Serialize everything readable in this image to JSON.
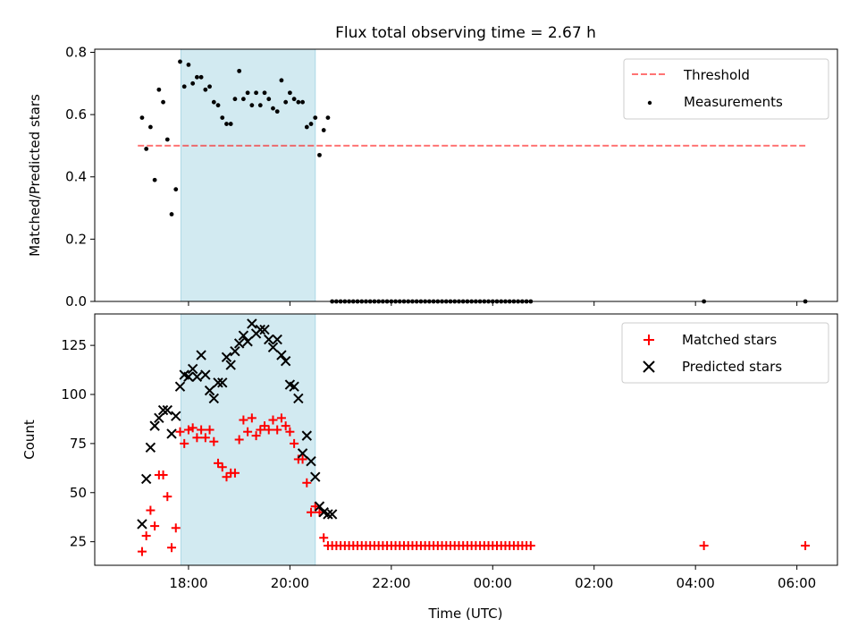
{
  "title": "Flux total observing time = 2.67 h",
  "x_axis_label": "Time (UTC)",
  "x_ticks": [
    "18:00",
    "20:00",
    "22:00",
    "00:00",
    "02:00",
    "04:00",
    "06:00"
  ],
  "x_tick_hours": [
    18,
    20,
    22,
    24,
    26,
    28,
    30
  ],
  "x_range_hours": [
    16.15,
    30.8
  ],
  "highlight_span_hours": [
    17.85,
    20.5
  ],
  "colors": {
    "highlight": "#add8e6",
    "threshold": "#ff0000",
    "measurements": "#000000",
    "matched": "#ff0000",
    "predicted": "#000000"
  },
  "chart_data": [
    {
      "type": "scatter",
      "ylabel": "Matched/Predicted stars",
      "ylim": [
        0,
        0.81
      ],
      "yticks": [
        "0.0",
        "0.2",
        "0.4",
        "0.6",
        "0.8"
      ],
      "ytick_values": [
        0,
        0.2,
        0.4,
        0.6,
        0.8
      ],
      "legend_position": "top-right",
      "threshold": {
        "name": "Threshold",
        "y": 0.5,
        "x_start": "17:00",
        "x_end": "06:10"
      },
      "series": [
        {
          "name": "Measurements",
          "x": [
            "17:05",
            "17:10",
            "17:15",
            "17:20",
            "17:25",
            "17:30",
            "17:35",
            "17:40",
            "17:45",
            "17:50",
            "17:55",
            "18:00",
            "18:05",
            "18:10",
            "18:15",
            "18:20",
            "18:25",
            "18:30",
            "18:35",
            "18:40",
            "18:45",
            "18:50",
            "18:55",
            "19:00",
            "19:05",
            "19:10",
            "19:15",
            "19:20",
            "19:25",
            "19:30",
            "19:35",
            "19:40",
            "19:45",
            "19:50",
            "19:55",
            "20:00",
            "20:05",
            "20:10",
            "20:15",
            "20:20",
            "20:25",
            "20:30",
            "20:35",
            "20:40",
            "20:45",
            "20:50",
            "20:55",
            "21:00",
            "21:05",
            "21:10",
            "21:15",
            "21:20",
            "21:25",
            "21:30",
            "21:35",
            "21:40",
            "21:45",
            "21:50",
            "21:55",
            "22:00",
            "22:05",
            "22:10",
            "22:15",
            "22:20",
            "22:25",
            "22:30",
            "22:35",
            "22:40",
            "22:45",
            "22:50",
            "22:55",
            "23:00",
            "23:05",
            "23:10",
            "23:15",
            "23:20",
            "23:25",
            "23:30",
            "23:35",
            "23:40",
            "23:45",
            "23:50",
            "23:55",
            "00:00",
            "00:05",
            "00:10",
            "00:15",
            "00:20",
            "00:25",
            "00:30",
            "00:35",
            "00:40",
            "00:45",
            "04:10",
            "06:10"
          ],
          "y": [
            0.59,
            0.49,
            0.56,
            0.39,
            0.68,
            0.64,
            0.52,
            0.28,
            0.36,
            0.77,
            0.69,
            0.76,
            0.7,
            0.72,
            0.72,
            0.68,
            0.69,
            0.64,
            0.63,
            0.59,
            0.57,
            0.57,
            0.65,
            0.74,
            0.65,
            0.67,
            0.63,
            0.67,
            0.63,
            0.67,
            0.65,
            0.62,
            0.61,
            0.71,
            0.64,
            0.67,
            0.65,
            0.64,
            0.64,
            0.56,
            0.57,
            0.59,
            0.47,
            0.55,
            0.59,
            0.0,
            0.0,
            0.0,
            0.0,
            0.0,
            0.0,
            0.0,
            0.0,
            0.0,
            0.0,
            0.0,
            0.0,
            0.0,
            0.0,
            0.0,
            0.0,
            0.0,
            0.0,
            0.0,
            0.0,
            0.0,
            0.0,
            0.0,
            0.0,
            0.0,
            0.0,
            0.0,
            0.0,
            0.0,
            0.0,
            0.0,
            0.0,
            0.0,
            0.0,
            0.0,
            0.0,
            0.0,
            0.0,
            0.0,
            0.0,
            0.0,
            0.0,
            0.0,
            0.0,
            0.0,
            0.0,
            0.0,
            0.0,
            0.0,
            0.0
          ]
        }
      ]
    },
    {
      "type": "scatter",
      "ylabel": "Count",
      "ylim": [
        13,
        141
      ],
      "yticks": [
        "25",
        "50",
        "75",
        "100",
        "125"
      ],
      "ytick_values": [
        25,
        50,
        75,
        100,
        125
      ],
      "legend_position": "top-right",
      "series": [
        {
          "name": "Matched stars",
          "x": [
            "17:05",
            "17:10",
            "17:15",
            "17:20",
            "17:25",
            "17:30",
            "17:35",
            "17:40",
            "17:45",
            "17:50",
            "17:55",
            "18:00",
            "18:05",
            "18:10",
            "18:15",
            "18:20",
            "18:25",
            "18:30",
            "18:35",
            "18:40",
            "18:45",
            "18:50",
            "18:55",
            "19:00",
            "19:05",
            "19:10",
            "19:15",
            "19:20",
            "19:25",
            "19:30",
            "19:35",
            "19:40",
            "19:45",
            "19:50",
            "19:55",
            "20:00",
            "20:05",
            "20:10",
            "20:15",
            "20:20",
            "20:25",
            "20:30",
            "20:35",
            "20:40",
            "20:45",
            "20:50",
            "20:55",
            "21:00",
            "21:05",
            "21:10",
            "21:15",
            "21:20",
            "21:25",
            "21:30",
            "21:35",
            "21:40",
            "21:45",
            "21:50",
            "21:55",
            "22:00",
            "22:05",
            "22:10",
            "22:15",
            "22:20",
            "22:25",
            "22:30",
            "22:35",
            "22:40",
            "22:45",
            "22:50",
            "22:55",
            "23:00",
            "23:05",
            "23:10",
            "23:15",
            "23:20",
            "23:25",
            "23:30",
            "23:35",
            "23:40",
            "23:45",
            "23:50",
            "23:55",
            "00:00",
            "00:05",
            "00:10",
            "00:15",
            "00:20",
            "00:25",
            "00:30",
            "00:35",
            "00:40",
            "00:45",
            "04:10",
            "06:10"
          ],
          "y": [
            20,
            28,
            41,
            33,
            59,
            59,
            48,
            22,
            32,
            81,
            75,
            82,
            83,
            78,
            82,
            78,
            82,
            76,
            65,
            63,
            58,
            60,
            60,
            77,
            87,
            81,
            88,
            79,
            82,
            84,
            82,
            87,
            82,
            88,
            84,
            81,
            75,
            67,
            67,
            55,
            40,
            43,
            40,
            27,
            23,
            23,
            23,
            23,
            23,
            23,
            23,
            23,
            23,
            23,
            23,
            23,
            23,
            23,
            23,
            23,
            23,
            23,
            23,
            23,
            23,
            23,
            23,
            23,
            23,
            23,
            23,
            23,
            23,
            23,
            23,
            23,
            23,
            23,
            23,
            23,
            23,
            23,
            23,
            23,
            23,
            23,
            23,
            23,
            23,
            23,
            23,
            23,
            23,
            23,
            23
          ]
        },
        {
          "name": "Predicted stars",
          "x": [
            "17:05",
            "17:10",
            "17:15",
            "17:20",
            "17:25",
            "17:30",
            "17:35",
            "17:40",
            "17:45",
            "17:50",
            "17:55",
            "18:00",
            "18:05",
            "18:10",
            "18:15",
            "18:20",
            "18:25",
            "18:30",
            "18:35",
            "18:40",
            "18:45",
            "18:50",
            "18:55",
            "19:00",
            "19:05",
            "19:10",
            "19:15",
            "19:20",
            "19:25",
            "19:30",
            "19:35",
            "19:40",
            "19:45",
            "19:50",
            "19:55",
            "20:00",
            "20:05",
            "20:10",
            "20:15",
            "20:20",
            "20:25",
            "20:30",
            "20:35",
            "20:40",
            "20:45",
            "20:50"
          ],
          "y": [
            34,
            57,
            73,
            84,
            88,
            92,
            92,
            80,
            89,
            104,
            110,
            109,
            113,
            109,
            120,
            110,
            102,
            98,
            106,
            106,
            119,
            115,
            122,
            126,
            130,
            127,
            136,
            131,
            133,
            133,
            128,
            124,
            128,
            120,
            117,
            105,
            104,
            98,
            70,
            79,
            66,
            58,
            43,
            40,
            39,
            39
          ]
        }
      ]
    }
  ]
}
